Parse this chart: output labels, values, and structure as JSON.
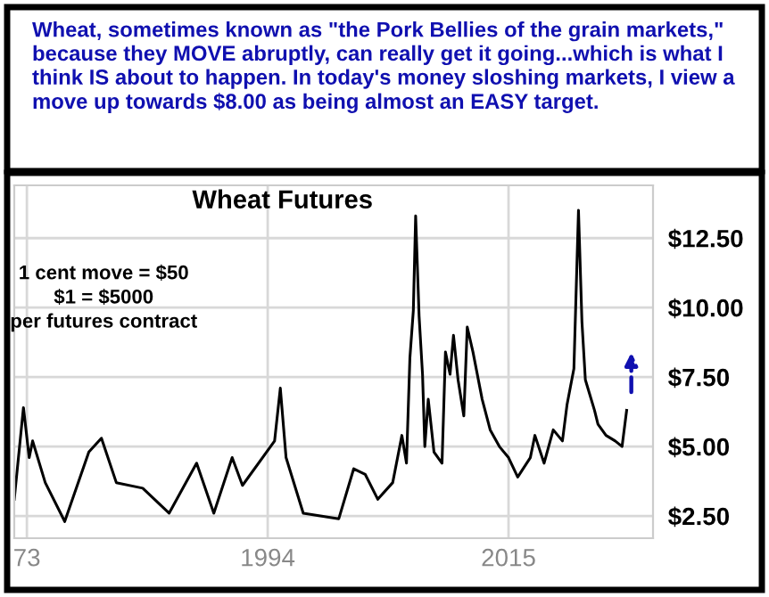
{
  "chart_data": {
    "type": "line",
    "title": "Wheat Futures",
    "subtitle": "Wheat, sometimes known as \"the Pork Bellies of the grain markets,\" because they MOVE abruptly, can really get it going...which is what I think IS about to happen. In today's money sloshing markets, I view a move up towards $8.00 as being almost an EASY target.",
    "annotations": [
      "1 cent move = $50\n$1 = $5000\nper futures contract"
    ],
    "series": [
      {
        "color": "#000000",
        "x": [
          1971.9,
          1972.7,
          1973.2,
          1973.5,
          1974.6,
          1976.3,
          1978.4,
          1979.5,
          1980.8,
          1983.1,
          1985.4,
          1987.8,
          1989.3,
          1990.9,
          1991.8,
          1994.6,
          1995.1,
          1995.6,
          1997.1,
          2000.2,
          2001.5,
          2002.5,
          2003.6,
          2004.9,
          2005.7,
          2006.1,
          2006.4,
          2006.7,
          2006.9,
          2007.2,
          2007.5,
          2007.7,
          2008.0,
          2008.5,
          2009.2,
          2009.5,
          2009.9,
          2010.2,
          2010.6,
          2011.1,
          2011.4,
          2011.9,
          2012.7,
          2013.4,
          2014.2,
          2015.0,
          2015.8,
          2016.9,
          2017.3,
          2018.1,
          2018.9,
          2019.7,
          2020.1,
          2020.7,
          2021.1,
          2021.4,
          2021.7,
          2022.5,
          2022.8,
          2023.5,
          2024.3,
          2024.9,
          2025.3
        ],
        "values": [
          3.1,
          6.4,
          4.6,
          5.2,
          3.7,
          2.3,
          4.8,
          5.3,
          3.7,
          3.5,
          2.6,
          4.4,
          2.6,
          4.6,
          3.6,
          5.2,
          7.1,
          4.6,
          2.6,
          2.4,
          4.2,
          4.0,
          3.1,
          3.7,
          5.4,
          4.4,
          8.2,
          9.9,
          13.3,
          9.7,
          7.6,
          5.0,
          6.7,
          4.8,
          4.4,
          8.4,
          7.6,
          9.0,
          7.4,
          6.1,
          9.3,
          8.4,
          6.7,
          5.6,
          5.0,
          4.6,
          3.9,
          4.6,
          5.4,
          4.4,
          5.6,
          5.2,
          6.5,
          7.8,
          13.5,
          9.5,
          7.4,
          6.3,
          5.8,
          5.4,
          5.2,
          5.0,
          6.3
        ]
      }
    ],
    "xlim": [
      1971.9,
      2027.6
    ],
    "xticks": [
      {
        "value": 1973,
        "label": "73"
      },
      1994,
      2015
    ],
    "ylim": [
      1.7,
      14.4
    ],
    "yticks": [
      {
        "value": 2.5,
        "label": "$2.50"
      },
      {
        "value": 5,
        "label": "$5.00"
      },
      {
        "value": 7.5,
        "label": "$7.50"
      },
      {
        "value": 10,
        "label": "$10.00"
      },
      {
        "value": 12.5,
        "label": "$12.50"
      }
    ],
    "grid": true,
    "marker": "none",
    "line_style": "solid"
  }
}
